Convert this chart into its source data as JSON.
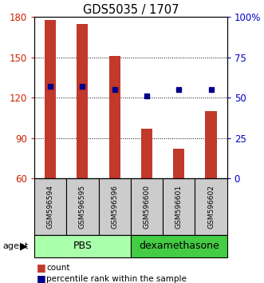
{
  "title": "GDS5035 / 1707",
  "samples": [
    "GSM596594",
    "GSM596595",
    "GSM596596",
    "GSM596600",
    "GSM596601",
    "GSM596602"
  ],
  "counts": [
    178,
    175,
    151,
    97,
    82,
    110
  ],
  "percentile_ranks": [
    57,
    57,
    55,
    51,
    55,
    55
  ],
  "bar_color": "#C0392B",
  "dot_color": "#00008B",
  "ylim_left": [
    60,
    180
  ],
  "ylim_right": [
    0,
    100
  ],
  "yticks_left": [
    60,
    90,
    120,
    150,
    180
  ],
  "yticks_right": [
    0,
    25,
    50,
    75,
    100
  ],
  "yticklabels_right": [
    "0",
    "25",
    "50",
    "75",
    "100%"
  ],
  "bar_width": 0.35,
  "left_color": "#CC2200",
  "right_color": "#0000CC",
  "pbs_color": "#AAFFAA",
  "dex_color": "#44CC44",
  "label_bg": "#CCCCCC"
}
